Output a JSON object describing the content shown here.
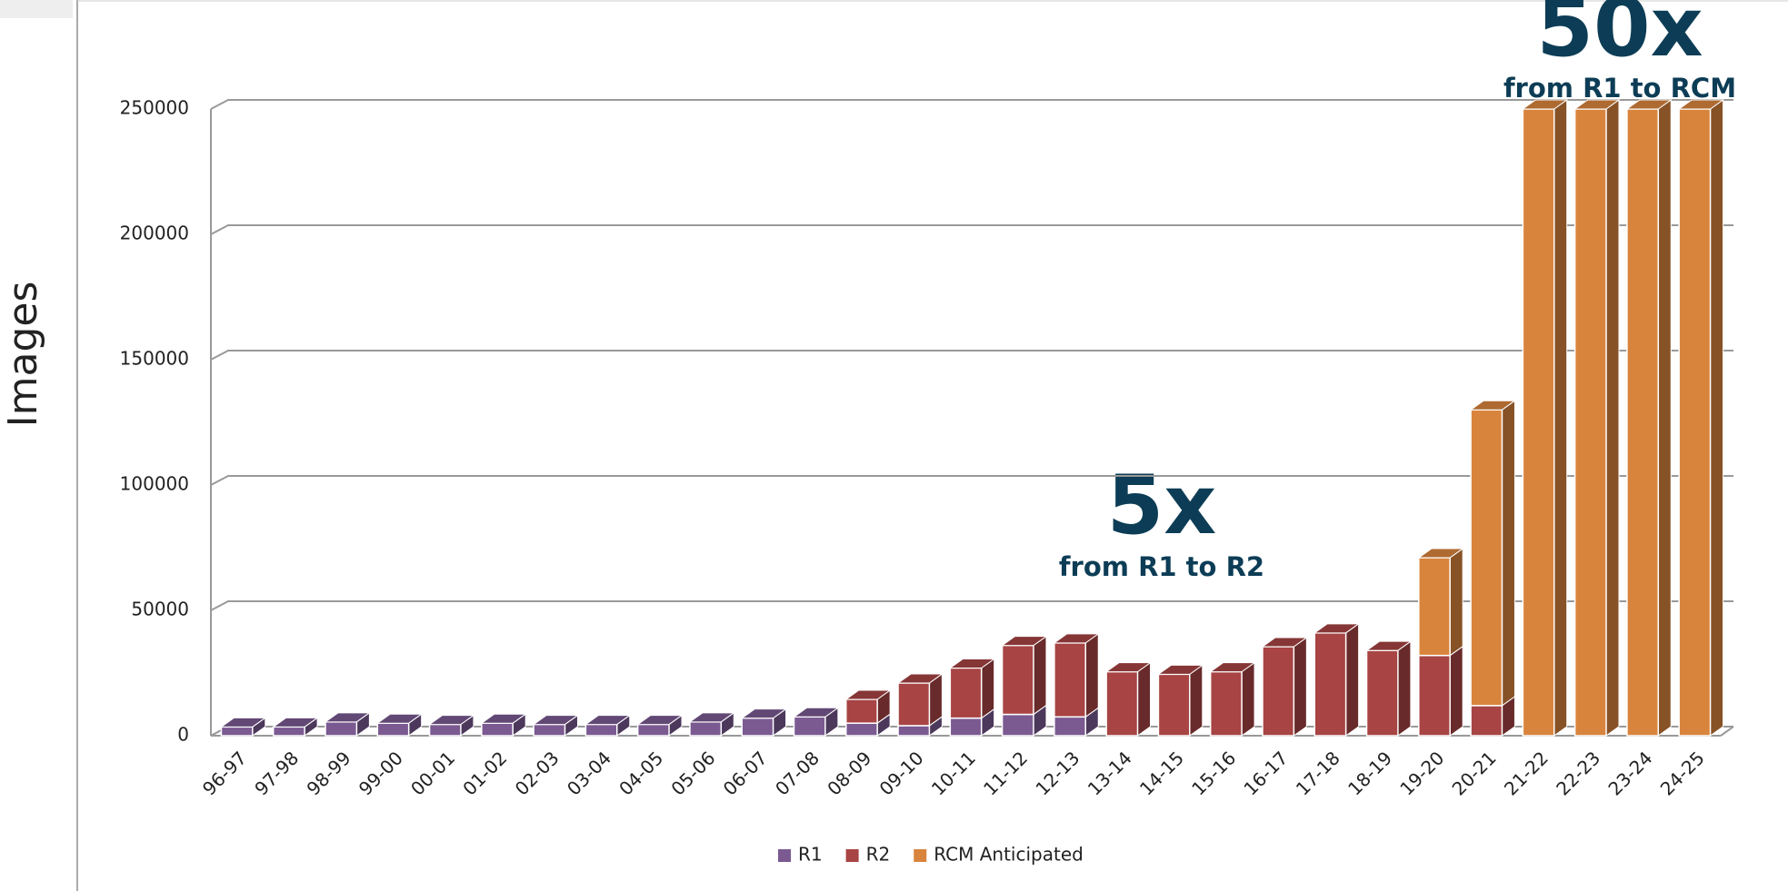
{
  "chart_data": {
    "type": "bar",
    "stacked": true,
    "y_axis_label": "Images",
    "categories": [
      "96-97",
      "97-98",
      "98-99",
      "99-00",
      "00-01",
      "01-02",
      "02-03",
      "03-04",
      "04-05",
      "05-06",
      "06-07",
      "07-08",
      "08-09",
      "09-10",
      "10-11",
      "11-12",
      "12-13",
      "13-14",
      "14-15",
      "15-16",
      "16-17",
      "17-18",
      "18-19",
      "19-20",
      "20-21",
      "21-22",
      "22-23",
      "23-24",
      "24-25"
    ],
    "series": [
      {
        "name": "R1",
        "color": "#7b5a92",
        "values": [
          3500,
          3500,
          5500,
          5000,
          4500,
          5000,
          4500,
          4500,
          4500,
          5500,
          7000,
          7500,
          5000,
          4000,
          7000,
          8500,
          7500,
          null,
          null,
          null,
          null,
          null,
          null,
          null,
          null,
          null,
          null,
          null,
          null
        ]
      },
      {
        "name": "R2",
        "color": "#a84444",
        "values": [
          null,
          null,
          null,
          null,
          null,
          null,
          null,
          null,
          null,
          null,
          null,
          null,
          9500,
          17000,
          20000,
          27500,
          29500,
          25500,
          24500,
          25500,
          35500,
          41000,
          34000,
          32000,
          12000,
          null,
          null,
          null,
          null
        ]
      },
      {
        "name": "RCM Anticipated",
        "color": "#d9843d",
        "values": [
          null,
          null,
          null,
          null,
          null,
          null,
          null,
          null,
          null,
          null,
          null,
          null,
          null,
          null,
          null,
          null,
          null,
          null,
          null,
          null,
          null,
          null,
          null,
          39000,
          118000,
          250000,
          250000,
          250000,
          250000
        ]
      }
    ],
    "ylim": [
      0,
      250000
    ],
    "yticks": [
      0,
      50000,
      100000,
      150000,
      200000,
      250000
    ],
    "grid": true,
    "annotations": [
      {
        "text": "5x",
        "subtext": "from R1 to R2"
      },
      {
        "text": "50x",
        "subtext": "from R1 to RCM"
      }
    ],
    "legend": "bottom"
  }
}
